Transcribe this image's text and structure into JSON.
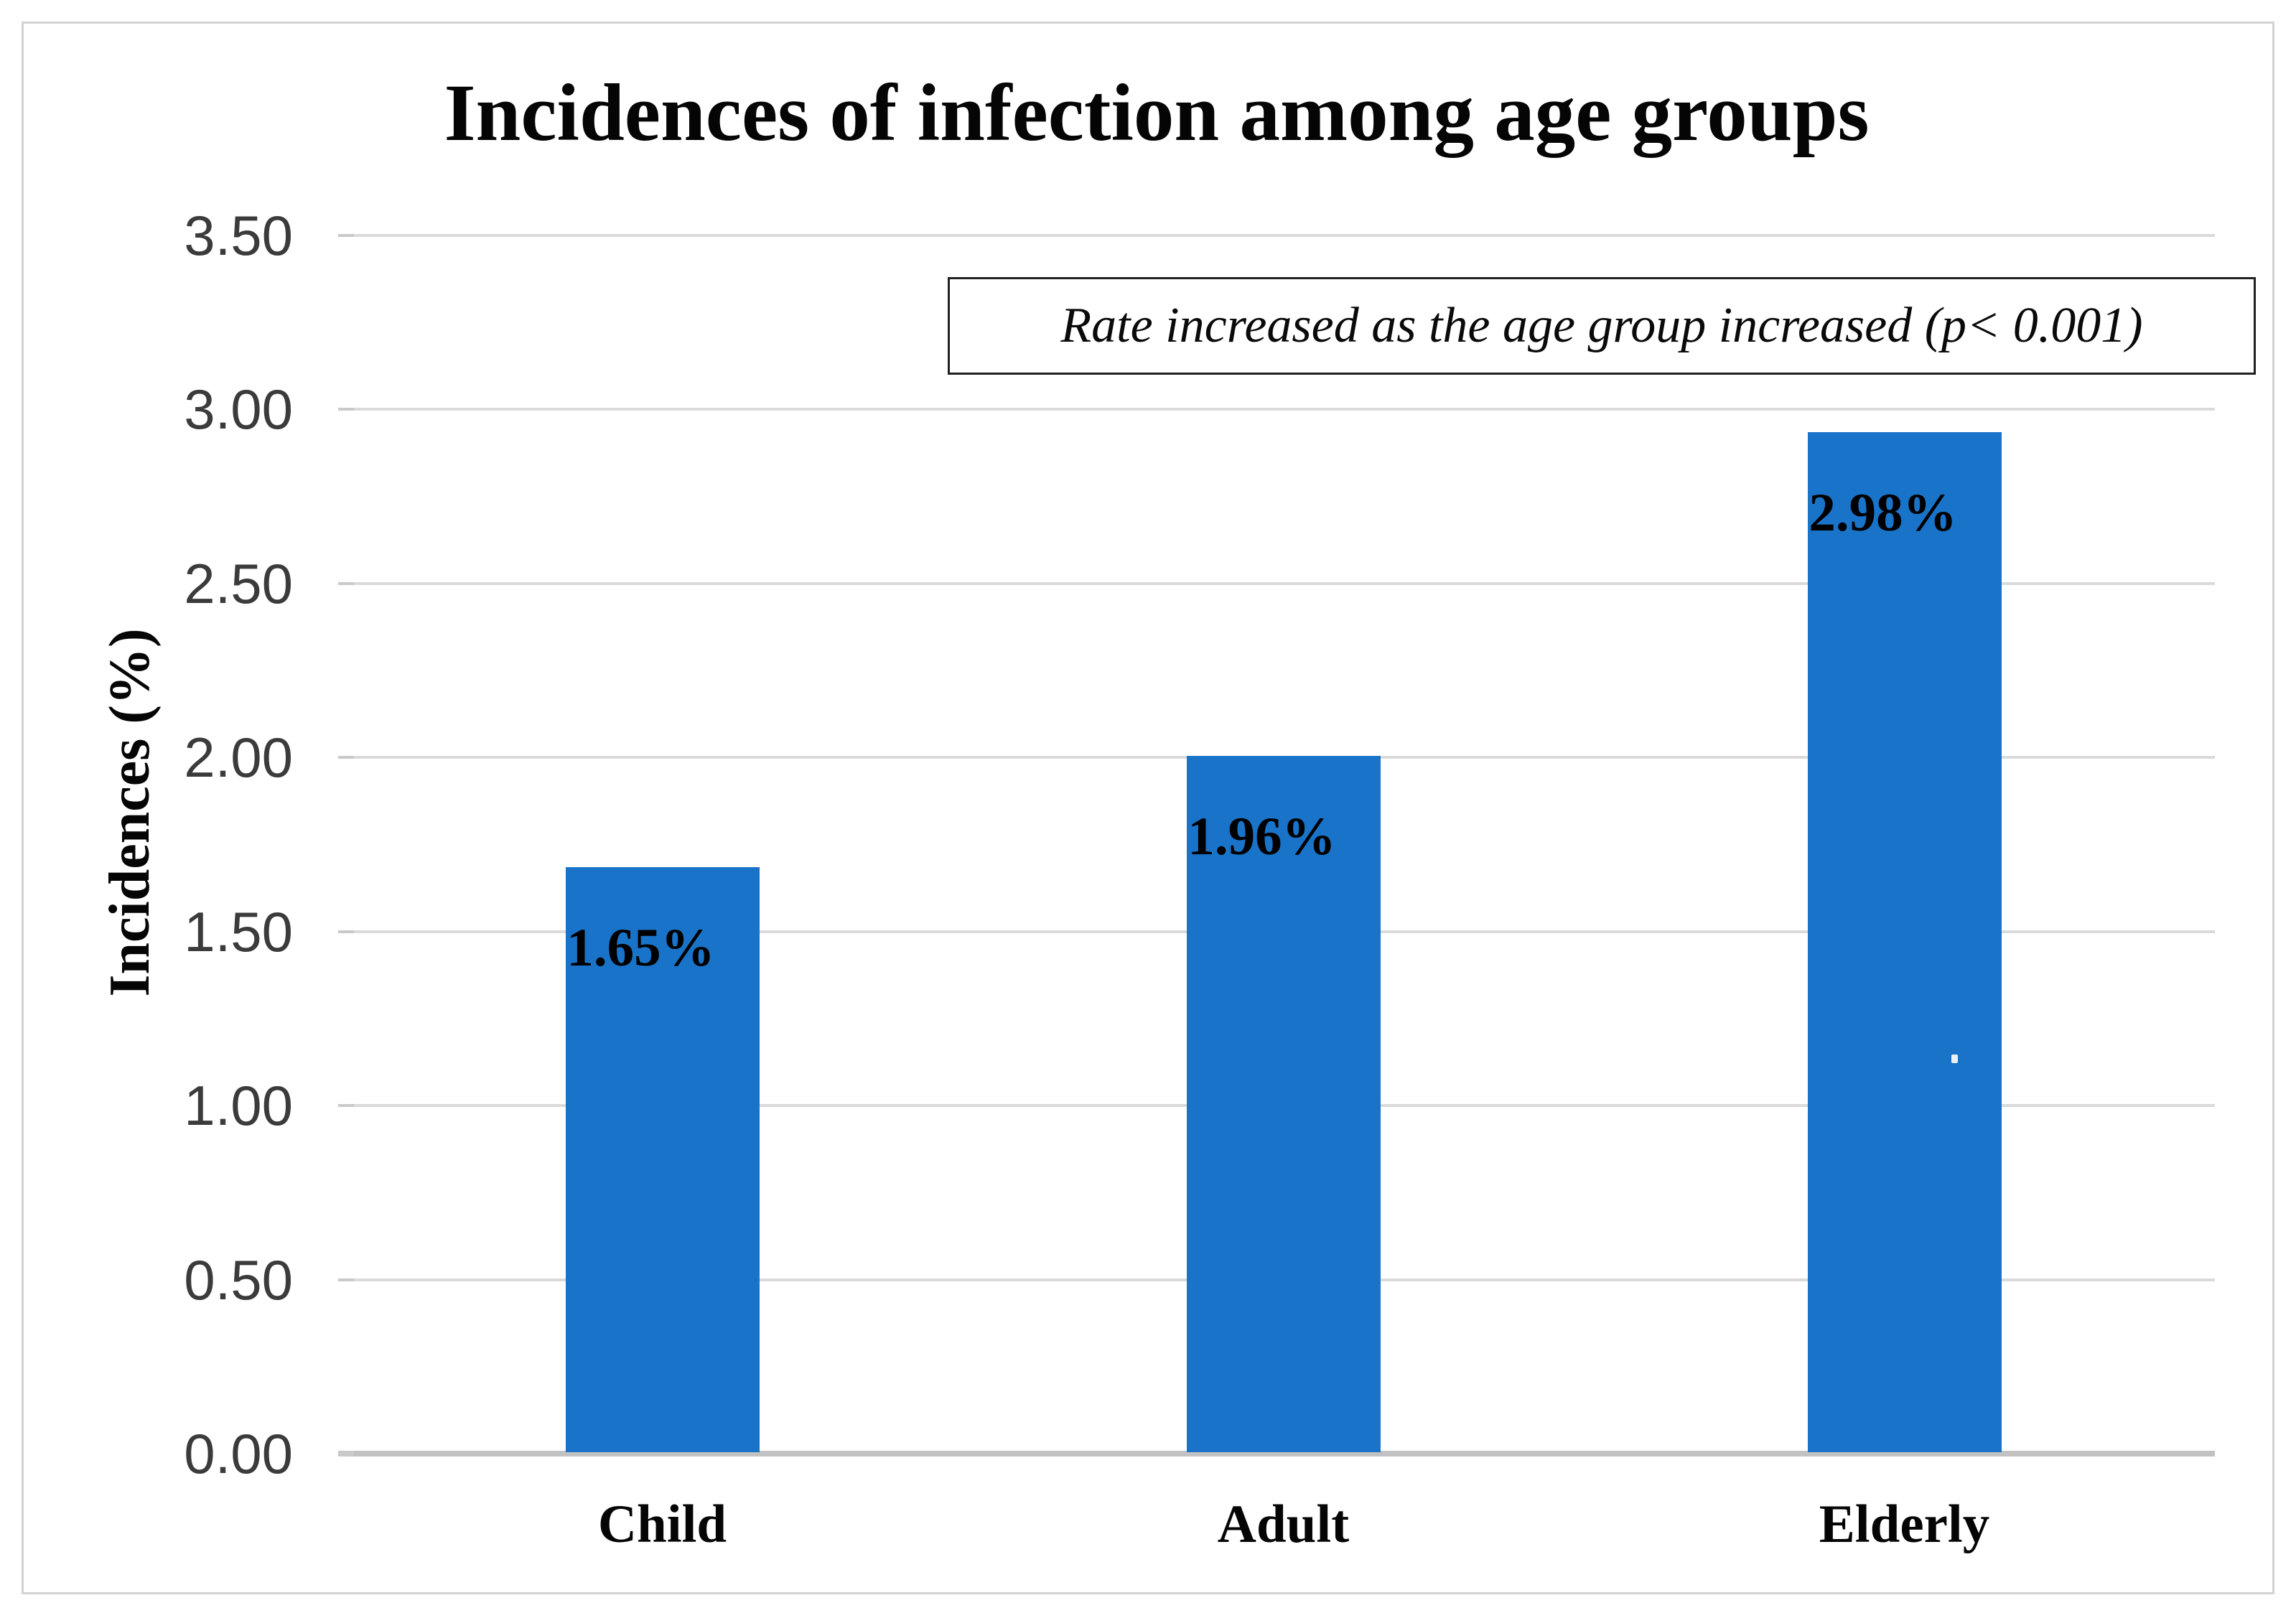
{
  "figure": {
    "title": "Incidences of infection among age groups",
    "annotation": "Rate increased as the age group increased (p< 0.001)",
    "y_axis_title": "Incidences (%)"
  },
  "chart_data": {
    "type": "bar",
    "title": "Incidences of infection among age groups",
    "categories": [
      "Child",
      "Adult",
      "Elderly"
    ],
    "values": [
      1.65,
      1.96,
      2.98
    ],
    "bar_labels": [
      "1.65%",
      "1.96%",
      "2.98%"
    ],
    "drawn_values": [
      1.68,
      2.0,
      2.93
    ],
    "xlabel": "",
    "ylabel": "Incidences (%)",
    "ylim": [
      0,
      3.5
    ],
    "y_ticks": [
      "0.00",
      "0.50",
      "1.00",
      "1.50",
      "2.00",
      "2.50",
      "3.00",
      "3.50"
    ],
    "grid": true,
    "legend": false,
    "annotation": "Rate increased as the age group increased (p< 0.001)",
    "bar_color": "#1973c8"
  },
  "colors": {
    "bar": "#1973c8",
    "gridline": "#dadada",
    "axis_line": "#c2c2c2",
    "tick_stub": "#c9c9c9",
    "tick_label": "#3b3b3b",
    "text": "#050505",
    "figure_border": "#d2d2d2",
    "annotation_border": "#212121",
    "background": "#ffffff"
  }
}
